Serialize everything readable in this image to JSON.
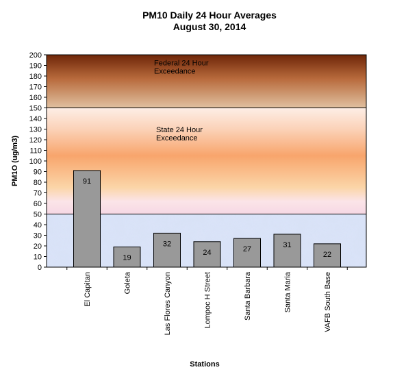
{
  "chart_data": {
    "type": "bar",
    "title": "PM10 Daily 24 Hour Averages",
    "subtitle": "August  30, 2014",
    "xlabel": "Stations",
    "ylabel": "PM1O (ug/m3)",
    "ylim": [
      0,
      200
    ],
    "ytick_step": 10,
    "categories": [
      "El Capitan",
      "Goleta",
      "Las Flores Canyon",
      "Lompoc H Street",
      "Santa Barbara",
      "Santa Maria",
      "VAFB South Base"
    ],
    "values": [
      91,
      19,
      32,
      24,
      27,
      31,
      22
    ],
    "bar_color": "#999999",
    "zones": [
      {
        "label_lines": [
          "Federal 24 Hour",
          "Exceedance"
        ],
        "from": 150,
        "to": 200,
        "colors": [
          "#7a2e0c",
          "#d8b28c"
        ]
      },
      {
        "label_lines": [
          "State 24 Hour",
          "Exceedance"
        ],
        "from": 50,
        "to": 150,
        "colors": [
          "#fbe0d8",
          "#f9a36a"
        ]
      },
      {
        "label_lines": [],
        "from": 0,
        "to": 50,
        "colors": [
          "#c8d8f4",
          "#dcd0ee"
        ]
      }
    ],
    "grid": false
  }
}
